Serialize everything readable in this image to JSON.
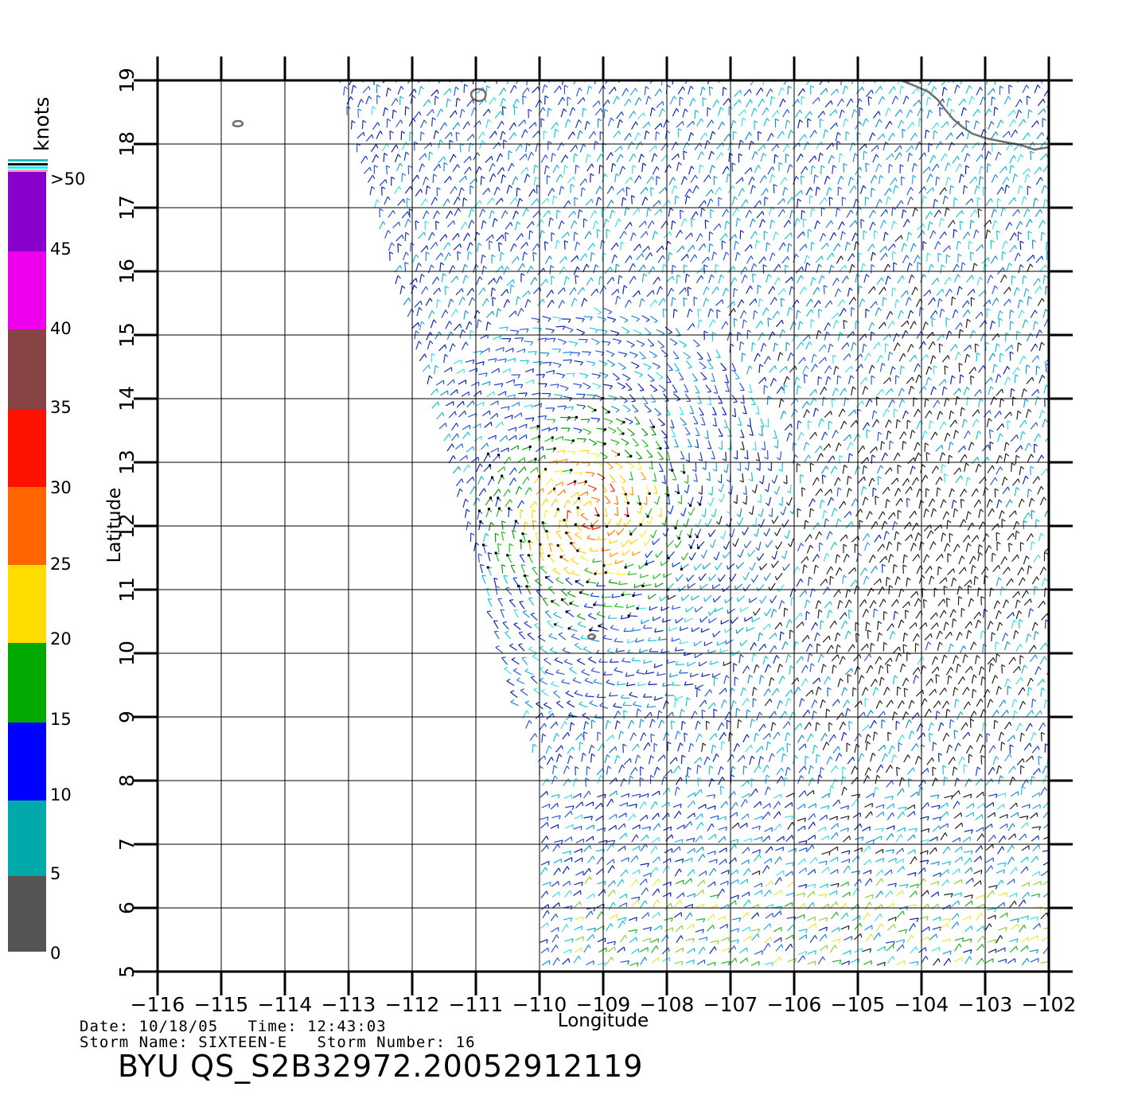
{
  "colorbar": {
    "unit": "knots",
    "labels": [
      ">50",
      "45",
      "40",
      "35",
      "30",
      "25",
      "20",
      "15",
      "10",
      "5",
      "0"
    ],
    "bands": [
      {
        "from": 0,
        "to": 5,
        "colors": [
          "#8a8a8a",
          "#2a2a2a"
        ]
      },
      {
        "from": 5,
        "to": 10,
        "colors": [
          "#00ffff",
          "#0078ff"
        ]
      },
      {
        "from": 10,
        "to": 15,
        "colors": [
          "#0078ff",
          "#0000f0"
        ]
      },
      {
        "from": 15,
        "to": 20,
        "colors": [
          "#006400",
          "#00ff00"
        ]
      },
      {
        "from": 20,
        "to": 25,
        "colors": [
          "#ffff20",
          "#ffc800"
        ]
      },
      {
        "from": 25,
        "to": 30,
        "colors": [
          "#ff8c00",
          "#ff2800"
        ]
      },
      {
        "from": 30,
        "to": 35,
        "colors": [
          "#ff2000",
          "#ff0000"
        ]
      },
      {
        "from": 35,
        "to": 40,
        "colors": [
          "#c88860",
          "#3c0c0c"
        ]
      },
      {
        "from": 40,
        "to": 45,
        "colors": [
          "#ff00ff",
          "#c000d0"
        ]
      },
      {
        "from": 45,
        "to": 50,
        "colors": [
          "#b000c8",
          "#5a14c8"
        ]
      }
    ]
  },
  "map": {
    "lon_range": [
      -116,
      -102
    ],
    "lat_range": [
      5,
      19
    ],
    "lon_ticks": [
      "−116",
      "−115",
      "−114",
      "−113",
      "−112",
      "−111",
      "−110",
      "−109",
      "−108",
      "−107",
      "−106",
      "−105",
      "−104",
      "−103",
      "−102"
    ],
    "lat_ticks": [
      "5",
      "6",
      "7",
      "8",
      "9",
      "10",
      "11",
      "12",
      "13",
      "14",
      "15",
      "16",
      "17",
      "18",
      "19"
    ],
    "xlabel": "Longitude",
    "ylabel": "Latitude",
    "storm_center": {
      "lon": -109.2,
      "lat": 12.2
    }
  },
  "info": {
    "date_line": "Date: 10/18/05   Time: 12:43:03",
    "storm_line": "Storm Name: SIXTEEN-E   Storm Number: 16",
    "product_id": "BYU QS_S2B32972.20052912119"
  }
}
